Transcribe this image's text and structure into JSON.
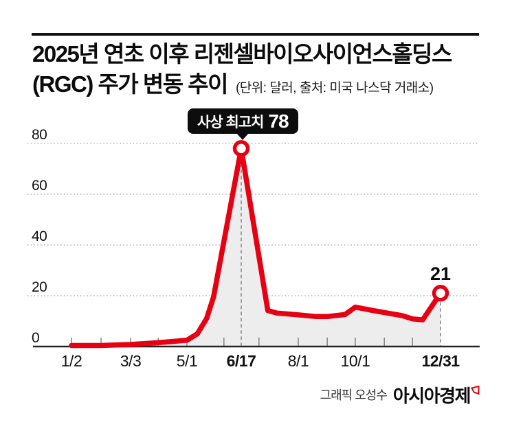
{
  "header": {
    "title_line1": "2025년 연초 이후 리젠셀바이오사이언스홀딩스",
    "title_line2": "(RGC) 주가 변동 추이",
    "subtitle": "(단위: 달러, 출처: 미국 나스닥 거래소)"
  },
  "annotation": {
    "peak_label": "사상 최고치",
    "peak_value": "78",
    "end_value": "21"
  },
  "footer": {
    "credit": "그래픽 오성수",
    "brand": "아시아경제"
  },
  "chart_data": {
    "type": "area",
    "title": "2025년 연초 이후 리젠셀바이오사이언스홀딩스(RGC) 주가 변동 추이",
    "unit": "달러",
    "source": "미국 나스닥 거래소",
    "ylim": [
      0,
      80
    ],
    "y_ticks": [
      0,
      20,
      40,
      60,
      80
    ],
    "y_tick_labels": [
      "80",
      "60",
      "40",
      "20",
      "0"
    ],
    "grid": "dotted-horizontal",
    "legend_position": "none",
    "line_color": "#e60012",
    "fill_color": "#ededed",
    "x_labels": [
      {
        "date": "1/2",
        "bold": false
      },
      {
        "date": "3/3",
        "bold": false
      },
      {
        "date": "5/1",
        "bold": false
      },
      {
        "date": "6/17",
        "bold": true
      },
      {
        "date": "8/1",
        "bold": false
      },
      {
        "date": "10/1",
        "bold": false
      },
      {
        "date": "12/31",
        "bold": true
      }
    ],
    "month_ticks": [
      "1/2",
      "2/1",
      "3/3",
      "4/1",
      "5/1",
      "6/2",
      "7/1",
      "8/1",
      "9/1",
      "10/1",
      "11/1",
      "12/1"
    ],
    "dashed_guides": [
      "6/17",
      "12/31"
    ],
    "markers": [
      {
        "date": "6/17",
        "value": 78,
        "label": "사상 최고치 78"
      },
      {
        "date": "12/31",
        "value": 21,
        "label": "21"
      }
    ],
    "series": [
      {
        "name": "RGC 주가(달러)",
        "points": [
          [
            "1/2",
            0.4
          ],
          [
            "2/1",
            0.4
          ],
          [
            "3/3",
            0.8
          ],
          [
            "4/1",
            1.5
          ],
          [
            "5/1",
            2.5
          ],
          [
            "5/10",
            5
          ],
          [
            "5/18",
            11
          ],
          [
            "5/24",
            19.5
          ],
          [
            "6/17",
            78
          ],
          [
            "7/8",
            14.2
          ],
          [
            "7/15",
            13.2
          ],
          [
            "8/1",
            12.5
          ],
          [
            "8/20",
            11.8
          ],
          [
            "9/1",
            11.8
          ],
          [
            "9/20",
            12.6
          ],
          [
            "10/1",
            15.5
          ],
          [
            "10/18",
            14.3
          ],
          [
            "11/1",
            13.4
          ],
          [
            "11/20",
            12.2
          ],
          [
            "12/1",
            10.9
          ],
          [
            "12/12",
            10.5
          ],
          [
            "12/31",
            21
          ]
        ]
      }
    ]
  }
}
